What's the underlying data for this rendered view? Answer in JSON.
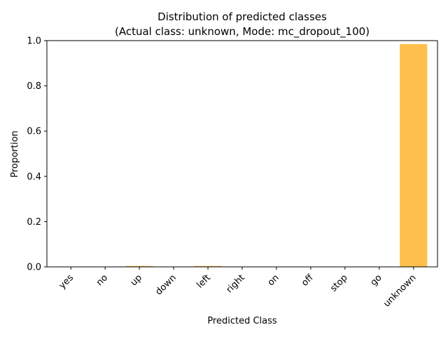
{
  "chart_data": {
    "type": "bar",
    "title": "Distribution of predicted classes",
    "subtitle": "(Actual class: unknown, Mode: mc_dropout_100)",
    "xlabel": "Predicted Class",
    "ylabel": "Proportion",
    "categories": [
      "yes",
      "no",
      "up",
      "down",
      "left",
      "right",
      "on",
      "off",
      "stop",
      "go",
      "unknown"
    ],
    "values": [
      0.0,
      0.0,
      0.004,
      0.0,
      0.004,
      0.0,
      0.0,
      0.0,
      0.0,
      0.0,
      0.985
    ],
    "ylim": [
      0,
      1
    ],
    "yticks": [
      "0.0",
      "0.2",
      "0.4",
      "0.6",
      "0.8",
      "1.0"
    ],
    "grid": false,
    "bar_color": "#ffbf4d"
  }
}
